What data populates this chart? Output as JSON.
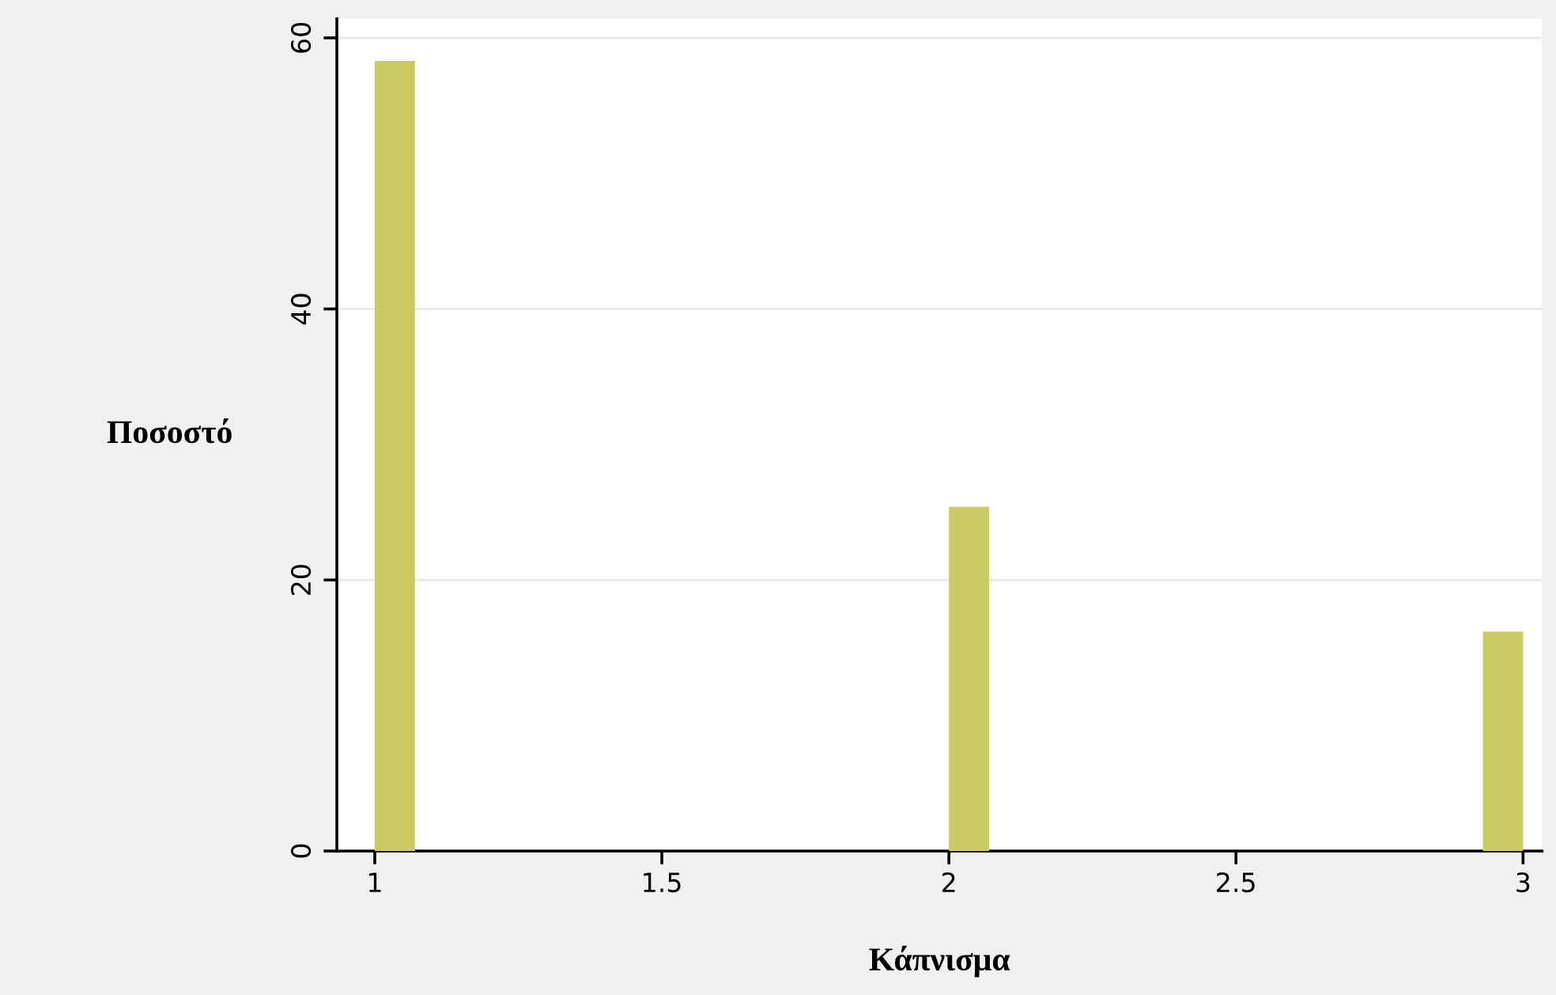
{
  "chart_data": {
    "type": "histogram",
    "xlabel": "Κάπνισμα",
    "ylabel": "Ποσοστό",
    "bins": [
      1,
      1.07,
      2,
      2.07,
      2.93,
      3
    ],
    "values": [
      58.3,
      0,
      25.4,
      0,
      16.2
    ],
    "color": "#cbcb66",
    "xlim": [
      0.934,
      3.033
    ],
    "xticks": [
      1,
      1.5,
      2,
      2.5,
      3
    ],
    "ylim": [
      0,
      61.4
    ],
    "yticks": [
      0,
      20,
      40,
      60
    ],
    "grid": "y"
  }
}
